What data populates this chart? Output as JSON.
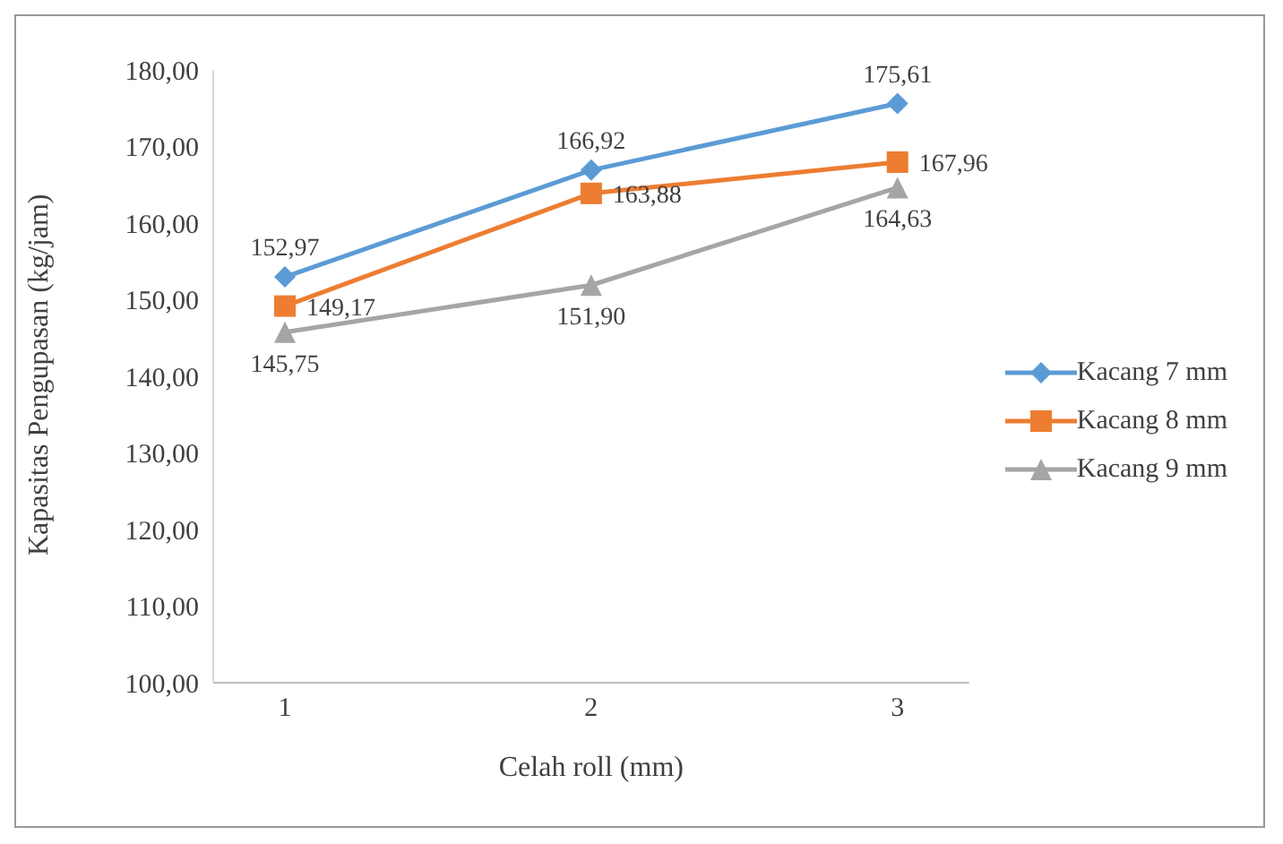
{
  "chart_data": {
    "type": "line",
    "xlabel": "Celah roll (mm)",
    "ylabel": "Kapasitas Pengupasan (kg/jam)",
    "categories": [
      "1",
      "2",
      "3"
    ],
    "series": [
      {
        "name": "Kacang 7 mm",
        "color": "#5b9bd5",
        "marker": "diamond",
        "values": [
          152.97,
          166.92,
          175.61
        ],
        "value_labels": [
          "152,97",
          "166,92",
          "175,61"
        ]
      },
      {
        "name": "Kacang 8 mm",
        "color": "#ed7d31",
        "marker": "square",
        "values": [
          149.17,
          163.88,
          167.96
        ],
        "value_labels": [
          "149,17",
          "163,88",
          "167,96"
        ]
      },
      {
        "name": "Kacang 9 mm",
        "color": "#a5a5a5",
        "marker": "triangle",
        "values": [
          145.75,
          151.9,
          164.63
        ],
        "value_labels": [
          "145,75",
          "151,90",
          "164,63"
        ]
      }
    ],
    "ylim": [
      100,
      180
    ],
    "yticks": [
      {
        "value": 100,
        "label": "100,00"
      },
      {
        "value": 110,
        "label": "110,00"
      },
      {
        "value": 120,
        "label": "120,00"
      },
      {
        "value": 130,
        "label": "130,00"
      },
      {
        "value": 140,
        "label": "140,00"
      },
      {
        "value": 150,
        "label": "150,00"
      },
      {
        "value": 160,
        "label": "160,00"
      },
      {
        "value": 170,
        "label": "170,00"
      },
      {
        "value": 180,
        "label": "180,00"
      }
    ],
    "legend": "right",
    "grid": false,
    "line_style": "solid"
  }
}
